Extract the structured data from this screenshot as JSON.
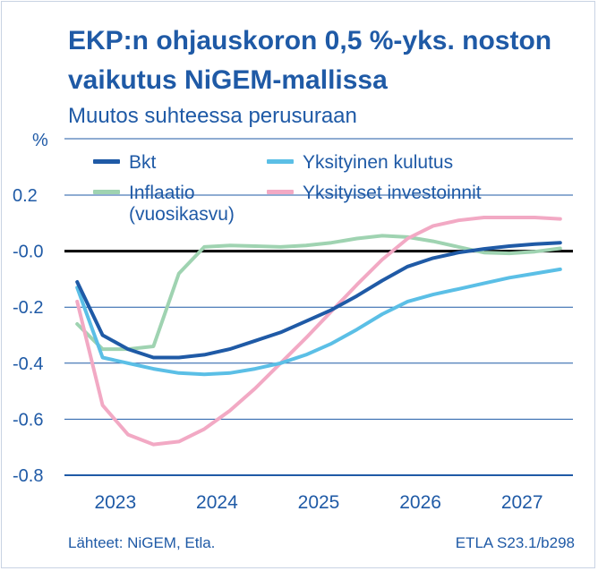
{
  "title": "EKP:n ohjauskoron 0,5 %-yks. noston vaikutus NiGEM-mallissa",
  "subtitle": "Muutos suhteessa perusuraan",
  "footer": {
    "sources": "Lähteet:  NiGEM, Etla.",
    "code": "ETLA S23.1/b298"
  },
  "chart_data": {
    "type": "line",
    "ylabel": "%",
    "ylim": [
      -0.8,
      0.2
    ],
    "yticks": [
      0.2,
      0.0,
      -0.2,
      -0.4,
      -0.6,
      -0.8
    ],
    "ytick_labels": [
      "0.2",
      "-0.0",
      "-0.2",
      "-0.4",
      "-0.6",
      "-0.8"
    ],
    "xlim": [
      2022.5,
      2027.5
    ],
    "xtick_labels": [
      "2023",
      "2024",
      "2025",
      "2026",
      "2027"
    ],
    "grid": true,
    "legend_position": "top",
    "series": [
      {
        "name": "Bkt",
        "color": "#1f5aa6",
        "x": [
          2022.625,
          2022.875,
          2023.125,
          2023.375,
          2023.625,
          2023.875,
          2024.125,
          2024.375,
          2024.625,
          2024.875,
          2025.125,
          2025.375,
          2025.625,
          2025.875,
          2026.125,
          2026.375,
          2026.625,
          2026.875,
          2027.125,
          2027.375
        ],
        "values": [
          -0.11,
          -0.3,
          -0.35,
          -0.38,
          -0.38,
          -0.37,
          -0.35,
          -0.32,
          -0.29,
          -0.25,
          -0.21,
          -0.16,
          -0.105,
          -0.055,
          -0.025,
          -0.005,
          0.008,
          0.018,
          0.025,
          0.03
        ]
      },
      {
        "name": "Yksityinen kulutus",
        "color": "#5bbfe6",
        "x": [
          2022.625,
          2022.875,
          2023.125,
          2023.375,
          2023.625,
          2023.875,
          2024.125,
          2024.375,
          2024.625,
          2024.875,
          2025.125,
          2025.375,
          2025.625,
          2025.875,
          2026.125,
          2026.375,
          2026.625,
          2026.875,
          2027.125,
          2027.375
        ],
        "values": [
          -0.13,
          -0.38,
          -0.4,
          -0.42,
          -0.435,
          -0.44,
          -0.435,
          -0.42,
          -0.4,
          -0.37,
          -0.33,
          -0.28,
          -0.225,
          -0.18,
          -0.155,
          -0.135,
          -0.115,
          -0.095,
          -0.08,
          -0.065
        ]
      },
      {
        "name": "Inflaatio (vuosikasvu)",
        "color": "#9fd3b1",
        "x": [
          2022.625,
          2022.875,
          2023.125,
          2023.375,
          2023.625,
          2023.875,
          2024.125,
          2024.375,
          2024.625,
          2024.875,
          2025.125,
          2025.375,
          2025.625,
          2025.875,
          2026.125,
          2026.375,
          2026.625,
          2026.875,
          2027.125,
          2027.375
        ],
        "values": [
          -0.26,
          -0.35,
          -0.35,
          -0.34,
          -0.08,
          0.015,
          0.02,
          0.018,
          0.015,
          0.02,
          0.03,
          0.045,
          0.055,
          0.05,
          0.035,
          0.015,
          -0.005,
          -0.008,
          -0.002,
          0.01
        ]
      },
      {
        "name": "Yksityiset investoinnit",
        "color": "#f2a9c4",
        "x": [
          2022.625,
          2022.875,
          2023.125,
          2023.375,
          2023.625,
          2023.875,
          2024.125,
          2024.375,
          2024.625,
          2024.875,
          2025.125,
          2025.375,
          2025.625,
          2025.875,
          2026.125,
          2026.375,
          2026.625,
          2026.875,
          2027.125,
          2027.375
        ],
        "values": [
          -0.18,
          -0.55,
          -0.655,
          -0.69,
          -0.68,
          -0.635,
          -0.57,
          -0.49,
          -0.4,
          -0.31,
          -0.215,
          -0.12,
          -0.03,
          0.045,
          0.09,
          0.11,
          0.12,
          0.12,
          0.12,
          0.115
        ]
      }
    ]
  }
}
